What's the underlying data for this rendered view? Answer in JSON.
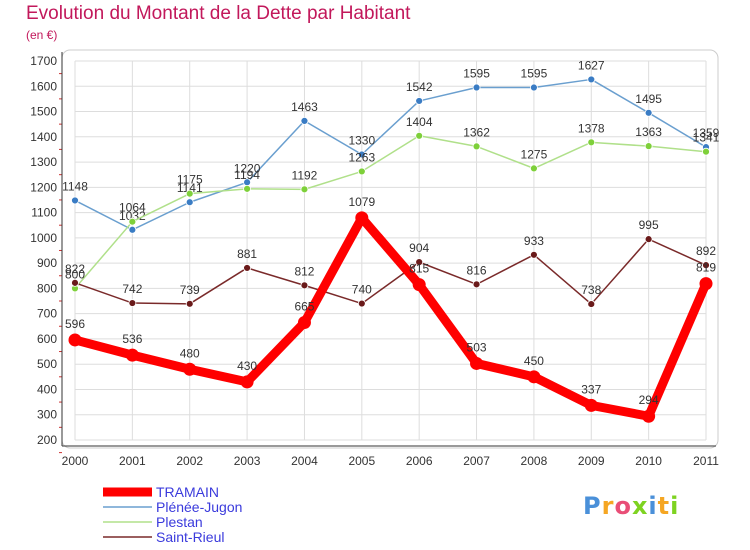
{
  "title": "Evolution du Montant de la Dette par Habitant",
  "subtitle": "(en €)",
  "logo_text": "Proxiti",
  "chart_data": {
    "type": "line",
    "title": "Evolution du Montant de la Dette par Habitant",
    "subtitle": "(en €)",
    "x": [
      "2000",
      "2001",
      "2002",
      "2003",
      "2004",
      "2005",
      "2006",
      "2007",
      "2008",
      "2009",
      "2010",
      "2011"
    ],
    "ylim": [
      200,
      1700
    ],
    "yticks": [
      200,
      300,
      400,
      500,
      600,
      700,
      800,
      900,
      1000,
      1100,
      1200,
      1300,
      1400,
      1500,
      1600,
      1700
    ],
    "grid": true,
    "legend_position": "bottom-left",
    "series": [
      {
        "name": "Plénée-Jugon",
        "color": "#6a9fcf",
        "marker": "#3a7cc4",
        "values": [
          1148,
          1032,
          1141,
          1220,
          1463,
          1330,
          1542,
          1595,
          1595,
          1627,
          1495,
          1359
        ]
      },
      {
        "name": "Plestan",
        "color": "#b0e08a",
        "marker": "#7ed03a",
        "values": [
          800,
          1064,
          1175,
          1194,
          1192,
          1263,
          1404,
          1362,
          1275,
          1378,
          1363,
          1341
        ]
      },
      {
        "name": "Saint-Rieul",
        "color": "#7a2a2a",
        "marker": "#6a1a1a",
        "values": [
          822,
          742,
          739,
          881,
          812,
          740,
          904,
          816,
          933,
          738,
          995,
          892
        ]
      },
      {
        "name": "TRAMAIN",
        "color": "#ff0000",
        "marker": "#ff0000",
        "values": [
          596,
          536,
          480,
          430,
          665,
          1079,
          815,
          503,
          450,
          337,
          294,
          819
        ]
      }
    ]
  },
  "colors": {
    "title": "#c2185b",
    "axis": "#333333",
    "grid": "#dddddd",
    "logo": [
      "#4a90d9",
      "#f5a623",
      "#e94e77",
      "#7ed321",
      "#4a90d9",
      "#f5a623",
      "#7ed321"
    ]
  }
}
